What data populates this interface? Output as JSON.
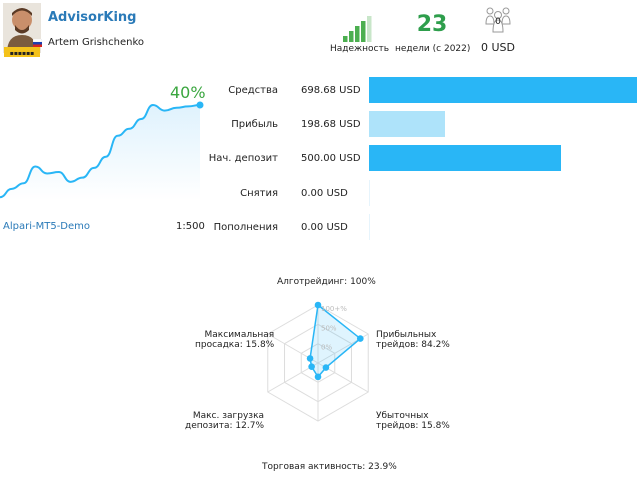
{
  "header": {
    "name": "AdvisorKing",
    "author": "Artem Grishchenko",
    "avatar_icon": "avatar-photo-icon",
    "flag_icon": "russia-flag-icon",
    "reliability_label": "Надежность",
    "reliability_level": 4,
    "reliability_max": 5,
    "weeks_value": "23",
    "weeks_label": "недели (с 2022)",
    "subscribers_count": "0",
    "subscribers_funds": "0 USD",
    "accent_green": "#2e9e4c"
  },
  "growth": {
    "percent_label": "40%",
    "broker": "Alpari-MT5-Demo",
    "leverage": "1:500",
    "line_color": "#29b6f6",
    "points": [
      2,
      8,
      12,
      24,
      19,
      20,
      13,
      16,
      23,
      31,
      46,
      51,
      58,
      68,
      64,
      66,
      67,
      68
    ]
  },
  "finance": {
    "rows": [
      {
        "label": "Средства",
        "value": "698.68 USD",
        "amount": 698.68,
        "color": "#29b6f6"
      },
      {
        "label": "Прибыль",
        "value": "198.68 USD",
        "amount": 198.68,
        "color": "#aee3fa"
      },
      {
        "label": "Нач. депозит",
        "value": "500.00 USD",
        "amount": 500.0,
        "color": "#29b6f6"
      },
      {
        "label": "Снятия",
        "value": "0.00 USD",
        "amount": 0,
        "color": "#29b6f6"
      },
      {
        "label": "Пополнения",
        "value": "0.00 USD",
        "amount": 0,
        "color": "#29b6f6"
      }
    ]
  },
  "radar": {
    "ticks": [
      "100+%",
      "50%",
      "0%"
    ],
    "axes": [
      {
        "label": "Алготрейдинг: 100%",
        "value": 100
      },
      {
        "label": "Прибыльных трейдов: 84.2%",
        "value": 84.2
      },
      {
        "label": "Убыточных трейдов: 15.8%",
        "value": 15.8
      },
      {
        "label": "Торговая активность: 23.9%",
        "value": 23.9
      },
      {
        "label": "Макс. загрузка депозита: 12.7%",
        "value": 12.7
      },
      {
        "label": "Максимальная просадка: 15.8%",
        "value": 15.8
      }
    ],
    "label_lines": [
      [
        "Алготрейдинг: 100%"
      ],
      [
        "Прибыльных",
        "трейдов: 84.2%"
      ],
      [
        "Убыточных",
        "трейдов: 15.8%"
      ],
      [
        "Торговая активность: 23.9%"
      ],
      [
        "Макс. загрузка",
        "депозита: 12.7%"
      ],
      [
        "Максимальная",
        "просадка: 15.8%"
      ]
    ]
  }
}
